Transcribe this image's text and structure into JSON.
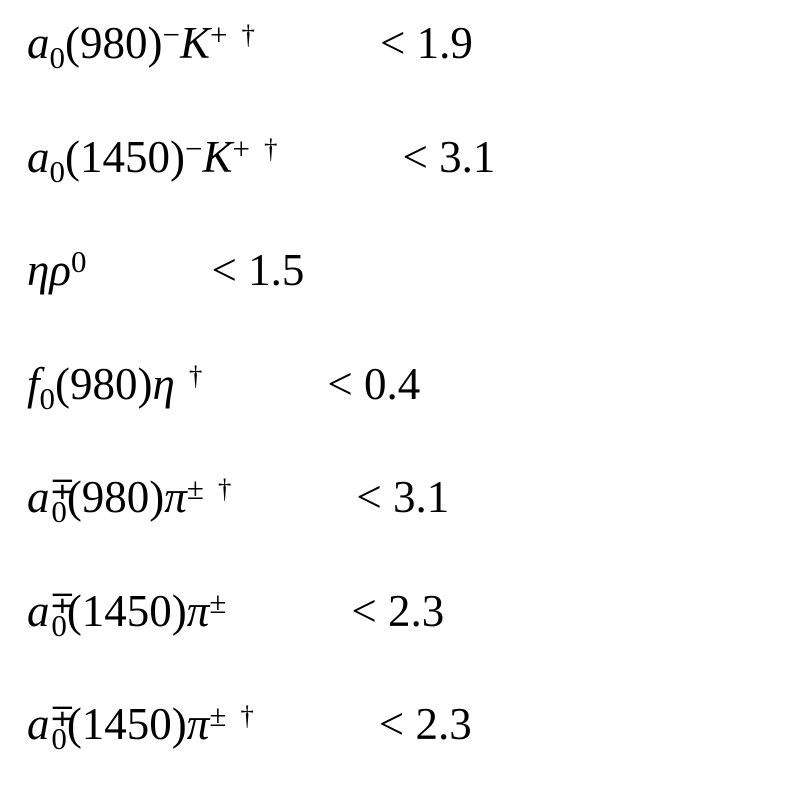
{
  "page": {
    "background_color": "#ffffff",
    "text_color": "#000000",
    "description_visible_content": "List of decay modes with upper limits",
    "footnote_marker_glyph": "†"
  },
  "table": {
    "rows": [
      {
        "mode": [
          {
            "t": "a",
            "s": "var"
          },
          {
            "t": "0",
            "s": "sub"
          },
          {
            "t": "(980)",
            "s": "up"
          },
          {
            "t": "−",
            "s": "sup"
          },
          {
            "t": "K",
            "s": "var"
          },
          {
            "t": "+",
            "s": "sup"
          },
          {
            "t": "†",
            "s": "dag"
          }
        ],
        "mode_text": "a0(980)− K+ †",
        "limit": "< 1.9"
      },
      {
        "mode": [
          {
            "t": "a",
            "s": "var"
          },
          {
            "t": "0",
            "s": "sub"
          },
          {
            "t": "(1450)",
            "s": "up"
          },
          {
            "t": "−",
            "s": "sup"
          },
          {
            "t": "K",
            "s": "var"
          },
          {
            "t": "+",
            "s": "sup"
          },
          {
            "t": "†",
            "s": "dag"
          }
        ],
        "mode_text": "a0(1450)− K+ †",
        "limit": "< 3.1"
      },
      {
        "mode": [
          {
            "t": "η",
            "s": "var"
          },
          {
            "t": "ρ",
            "s": "var"
          },
          {
            "t": "0",
            "s": "sup"
          }
        ],
        "mode_text": "η ρ0",
        "limit": "< 1.5"
      },
      {
        "mode": [
          {
            "t": "f",
            "s": "var"
          },
          {
            "t": "0",
            "s": "sub"
          },
          {
            "t": "(980)",
            "s": "up"
          },
          {
            "t": "η",
            "s": "var"
          },
          {
            "t": "†",
            "s": "dag"
          }
        ],
        "mode_text": "f0(980)η †",
        "limit": "< 0.4"
      },
      {
        "mode": [
          {
            "t": "a",
            "s": "var"
          },
          {
            "t": "∓",
            "s": "sup"
          },
          {
            "t": "0",
            "s": "subpull"
          },
          {
            "t": "(980)",
            "s": "up"
          },
          {
            "t": "π",
            "s": "var"
          },
          {
            "t": "±",
            "s": "sup"
          },
          {
            "t": "†",
            "s": "dag"
          }
        ],
        "mode_text": "a0∓(980)π± †",
        "limit": "< 3.1"
      },
      {
        "mode": [
          {
            "t": "a",
            "s": "var"
          },
          {
            "t": "∓",
            "s": "sup"
          },
          {
            "t": "0",
            "s": "subpull"
          },
          {
            "t": "(1450)",
            "s": "up"
          },
          {
            "t": "π",
            "s": "var"
          },
          {
            "t": "±",
            "s": "sup"
          }
        ],
        "mode_text": "a0∓(1450)π±",
        "limit": "< 2.3"
      },
      {
        "mode": [
          {
            "t": "a",
            "s": "var"
          },
          {
            "t": "∓",
            "s": "sup"
          },
          {
            "t": "0",
            "s": "subpull"
          },
          {
            "t": "(1450)",
            "s": "up"
          },
          {
            "t": "π",
            "s": "var"
          },
          {
            "t": "±",
            "s": "sup"
          },
          {
            "t": "†",
            "s": "dag"
          }
        ],
        "mode_text": "a0∓(1450)π± †",
        "limit": "< 2.3"
      }
    ]
  }
}
